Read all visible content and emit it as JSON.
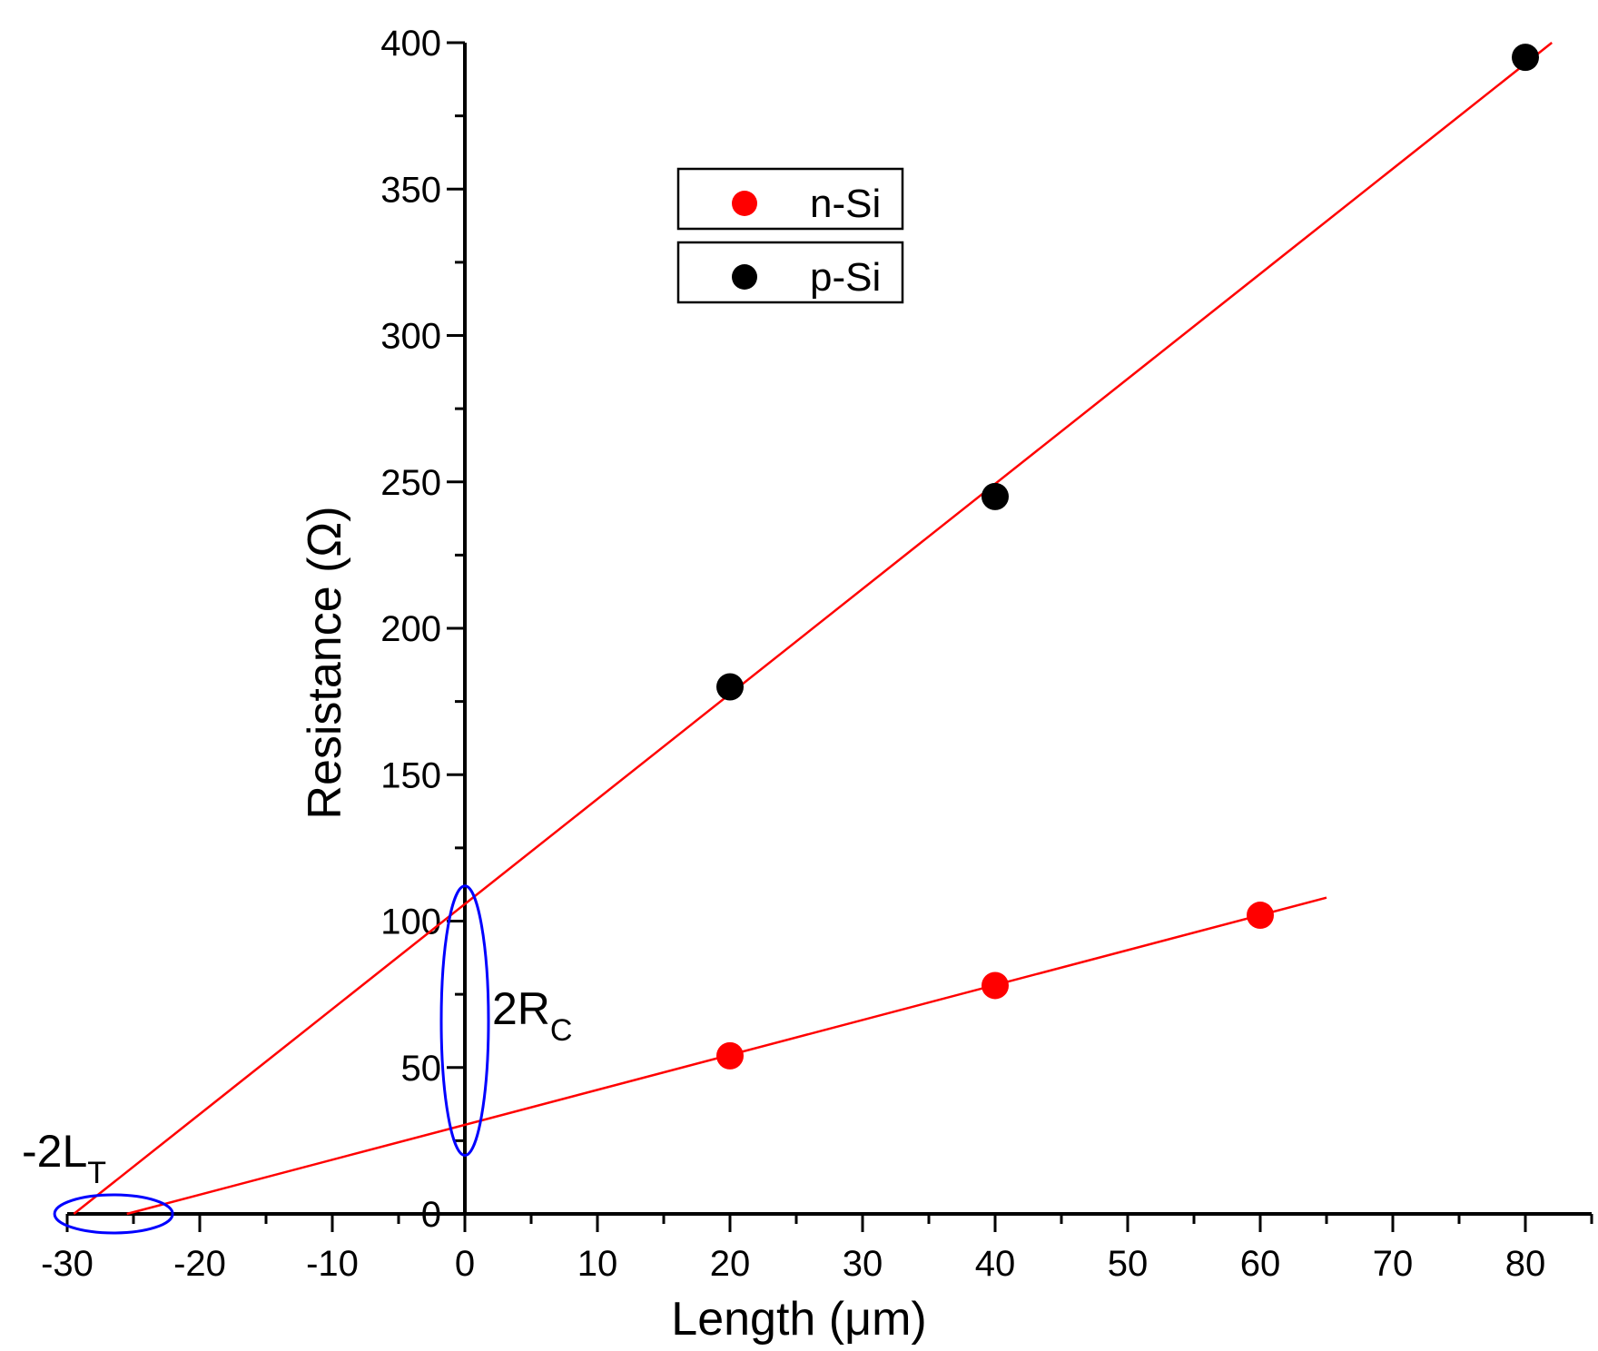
{
  "chart_data": {
    "type": "scatter",
    "xlabel": "Length (μm)",
    "ylabel": "Resistance (Ω)",
    "xlim": [
      -30,
      85
    ],
    "ylim": [
      0,
      400
    ],
    "x_ticks": [
      -30,
      -20,
      -10,
      0,
      10,
      20,
      30,
      40,
      50,
      60,
      70,
      80
    ],
    "y_ticks": [
      0,
      50,
      100,
      150,
      200,
      250,
      300,
      350,
      400
    ],
    "legend_position": "top-center",
    "grid": false,
    "series": [
      {
        "name": "n-Si",
        "color": "#ff0000",
        "points": [
          [
            20,
            54
          ],
          [
            40,
            78
          ],
          [
            60,
            102
          ]
        ],
        "fit": {
          "x_start": -25.5,
          "x_end": 65,
          "y_start": 0,
          "y_end": 108
        }
      },
      {
        "name": "p-Si",
        "color": "#000000",
        "line_color": "#ff0000",
        "points": [
          [
            20,
            180
          ],
          [
            40,
            245
          ],
          [
            80,
            395
          ]
        ],
        "fit": {
          "x_start": -29.5,
          "x_end": 82,
          "y_start": 0,
          "y_end": 400
        }
      }
    ],
    "annotations": {
      "contact": {
        "main": "2R",
        "sub": "C"
      },
      "transfer": {
        "main": "-2L",
        "sub": "T"
      },
      "ellipse_color": "#0000ff"
    }
  }
}
